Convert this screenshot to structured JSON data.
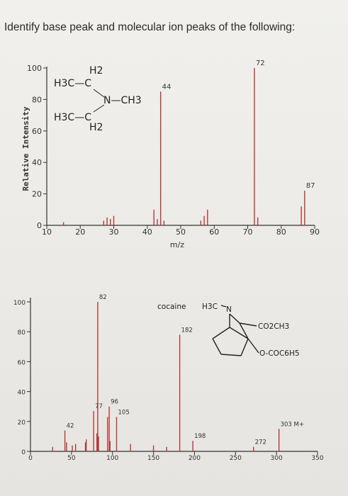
{
  "question": "Identify base peak and molecular ion peaks of the following:",
  "chart_data": [
    {
      "type": "bar",
      "ylabel": "Relative Intensity",
      "xlabel": "m/z",
      "xlim": [
        10,
        90
      ],
      "ylim": [
        0,
        100
      ],
      "xticks": [
        "10",
        "20",
        "30",
        "40",
        "50",
        "60",
        "70",
        "80",
        "90"
      ],
      "yticks": [
        "0",
        "20",
        "40",
        "60",
        "80",
        "100"
      ],
      "peaks": [
        {
          "mz": 15,
          "intensity": 2
        },
        {
          "mz": 27,
          "intensity": 3
        },
        {
          "mz": 28,
          "intensity": 5
        },
        {
          "mz": 29,
          "intensity": 4
        },
        {
          "mz": 30,
          "intensity": 6
        },
        {
          "mz": 42,
          "intensity": 10
        },
        {
          "mz": 43,
          "intensity": 4
        },
        {
          "mz": 44,
          "intensity": 85
        },
        {
          "mz": 45,
          "intensity": 3
        },
        {
          "mz": 56,
          "intensity": 3
        },
        {
          "mz": 57,
          "intensity": 6
        },
        {
          "mz": 58,
          "intensity": 10
        },
        {
          "mz": 72,
          "intensity": 100
        },
        {
          "mz": 73,
          "intensity": 5
        },
        {
          "mz": 86,
          "intensity": 12
        },
        {
          "mz": 87,
          "intensity": 22
        }
      ],
      "peak_labels": [
        {
          "mz": 44,
          "text": "44"
        },
        {
          "mz": 72,
          "text": "72"
        },
        {
          "mz": 87,
          "text": "87"
        }
      ],
      "structure": {
        "lines": [
          "H2",
          "H3C—C",
          "N—CH3",
          "H3C—C",
          "H2"
        ]
      }
    },
    {
      "type": "bar",
      "title": "cocaine",
      "xlim": [
        0,
        350
      ],
      "ylim": [
        0,
        100
      ],
      "xticks": [
        "0",
        "50",
        "100",
        "150",
        "200",
        "250",
        "300",
        "350"
      ],
      "yticks": [
        "0",
        "20",
        "40",
        "60",
        "80",
        "100"
      ],
      "peaks": [
        {
          "mz": 27,
          "intensity": 3
        },
        {
          "mz": 42,
          "intensity": 14
        },
        {
          "mz": 44,
          "intensity": 6
        },
        {
          "mz": 51,
          "intensity": 4
        },
        {
          "mz": 55,
          "intensity": 5
        },
        {
          "mz": 67,
          "intensity": 6
        },
        {
          "mz": 68,
          "intensity": 8
        },
        {
          "mz": 77,
          "intensity": 27
        },
        {
          "mz": 81,
          "intensity": 12
        },
        {
          "mz": 82,
          "intensity": 100
        },
        {
          "mz": 83,
          "intensity": 10
        },
        {
          "mz": 94,
          "intensity": 23
        },
        {
          "mz": 96,
          "intensity": 30
        },
        {
          "mz": 97,
          "intensity": 7
        },
        {
          "mz": 105,
          "intensity": 23
        },
        {
          "mz": 122,
          "intensity": 5
        },
        {
          "mz": 150,
          "intensity": 4
        },
        {
          "mz": 166,
          "intensity": 3
        },
        {
          "mz": 182,
          "intensity": 78
        },
        {
          "mz": 198,
          "intensity": 7
        },
        {
          "mz": 272,
          "intensity": 3
        },
        {
          "mz": 303,
          "intensity": 15
        }
      ],
      "peak_labels": [
        {
          "mz": 42,
          "text": "42"
        },
        {
          "mz": 77,
          "text": "77"
        },
        {
          "mz": 82,
          "text": "82"
        },
        {
          "mz": 96,
          "text": "96"
        },
        {
          "mz": 105,
          "text": "105"
        },
        {
          "mz": 182,
          "text": "182"
        },
        {
          "mz": 198,
          "text": "198"
        },
        {
          "mz": 272,
          "text": "272"
        },
        {
          "mz": 303,
          "text": "303 M+"
        }
      ],
      "structure": {
        "labels": [
          "H3C",
          "N",
          "CO2CH3",
          "O-COC6H5"
        ]
      }
    }
  ]
}
